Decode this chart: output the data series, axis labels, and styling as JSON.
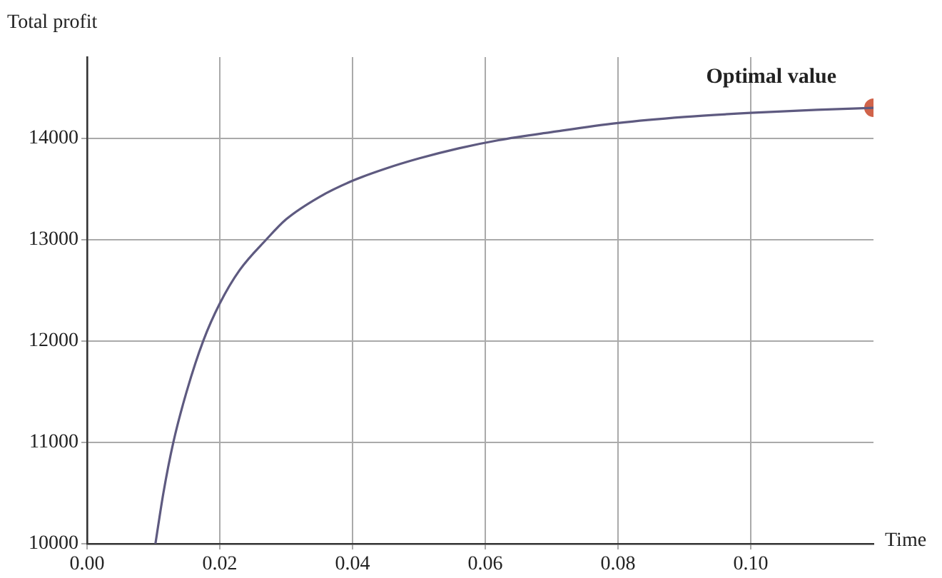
{
  "chart_data": {
    "type": "line",
    "xlabel": "Time",
    "ylabel": "Total profit",
    "xlim": [
      0,
      0.1185
    ],
    "xticks": [
      {
        "value": 0,
        "label": "0.00"
      },
      {
        "value": 0.02,
        "label": "0.02"
      },
      {
        "value": 0.04,
        "label": "0.04"
      },
      {
        "value": 0.06,
        "label": "0.06"
      },
      {
        "value": 0.08,
        "label": "0.08"
      },
      {
        "value": 0.1,
        "label": "0.10"
      }
    ],
    "ylim": [
      10000,
      14800
    ],
    "yticks": [
      10000,
      11000,
      12000,
      13000,
      14000
    ],
    "grid": true,
    "legend": false,
    "series": [
      {
        "color": "#5e5a80",
        "marker": "none",
        "line_style": "solid",
        "x": [
          0.0103,
          0.0115,
          0.013,
          0.015,
          0.0175,
          0.02,
          0.023,
          0.027,
          0.03,
          0.035,
          0.04,
          0.045,
          0.05,
          0.056,
          0.062,
          0.07,
          0.08,
          0.09,
          0.1,
          0.11,
          0.1185
        ],
        "values": [
          10000,
          10500,
          11000,
          11500,
          12000,
          12370,
          12700,
          13000,
          13200,
          13420,
          13580,
          13700,
          13800,
          13900,
          13980,
          14060,
          14150,
          14210,
          14250,
          14280,
          14300
        ]
      },
      {
        "type": "scatter",
        "color": "#d0634a",
        "marker": "circle",
        "x": [
          0.1185
        ],
        "values": [
          14300
        ]
      }
    ],
    "annotations": [
      {
        "text": "Optimal value",
        "x": 0.1185,
        "y": 14300
      }
    ]
  }
}
